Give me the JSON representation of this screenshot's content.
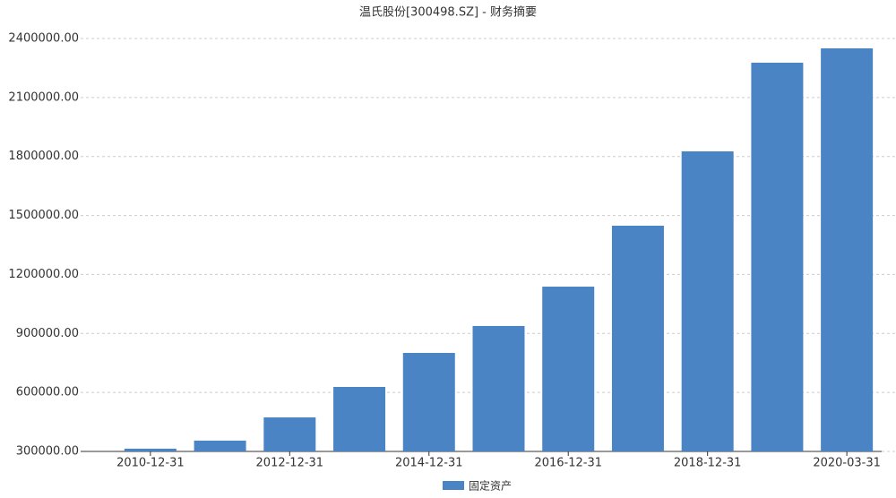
{
  "chart_data": {
    "type": "bar",
    "title": "温氏股份[300498.SZ] - 财务摘要",
    "categories": [
      "2010-12-31",
      null,
      "2012-12-31",
      null,
      "2014-12-31",
      null,
      "2016-12-31",
      null,
      "2018-12-31",
      null,
      "2020-03-31"
    ],
    "series": [
      {
        "name": "固定资产",
        "color": "#4a84c4",
        "values": [
          314000,
          355000,
          473000,
          628000,
          801000,
          938000,
          1138000,
          1448000,
          1826000,
          2277000,
          2350000
        ]
      }
    ],
    "ylim": [
      300000,
      2400000
    ],
    "yticks": [
      {
        "value": 300000,
        "label": "300000.00"
      },
      {
        "value": 600000,
        "label": "600000.00"
      },
      {
        "value": 900000,
        "label": "900000.00"
      },
      {
        "value": 1200000,
        "label": "1200000.00"
      },
      {
        "value": 1500000,
        "label": "1500000.00"
      },
      {
        "value": 1800000,
        "label": "1800000.00"
      },
      {
        "value": 2100000,
        "label": "2100000.00"
      },
      {
        "value": 2400000,
        "label": "2400000.00"
      }
    ],
    "grid": true
  }
}
